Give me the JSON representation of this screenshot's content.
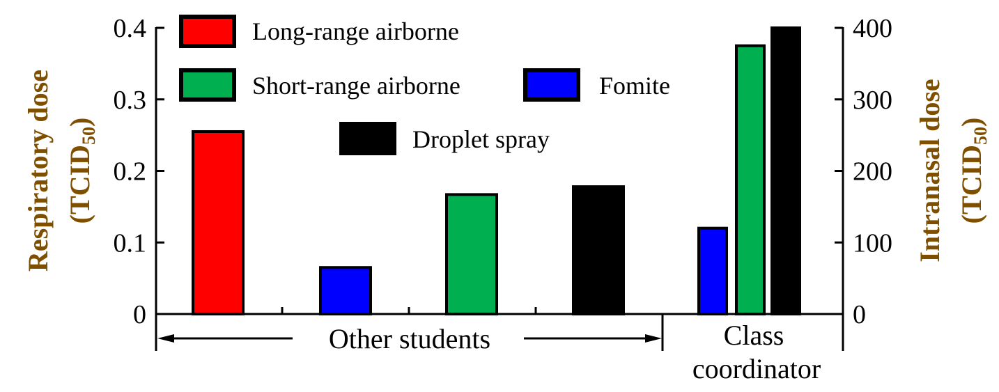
{
  "chart_data": {
    "type": "bar",
    "y_left": {
      "label": "Respiratory dose",
      "unit_main": "(TCID",
      "unit_sub": "50",
      "unit_close": ")",
      "range": [
        0,
        0.4
      ],
      "ticks": [
        0,
        0.1,
        0.2,
        0.3,
        0.4
      ],
      "tick_labels": [
        "0",
        "0.1",
        "0.2",
        "0.3",
        "0.4"
      ]
    },
    "y_right": {
      "label": "Intranasal dose",
      "unit_main": "(TCID",
      "unit_sub": "50",
      "unit_close": ")",
      "range": [
        0,
        400
      ],
      "ticks": [
        0,
        100,
        200,
        300,
        400
      ],
      "tick_labels": [
        "0",
        "100",
        "200",
        "300",
        "400"
      ]
    },
    "groups": [
      {
        "label": "Other students",
        "axis": "left",
        "bars": [
          {
            "series": "Long-range airborne",
            "value": 0.255
          },
          {
            "series": "Fomite",
            "value": 0.065
          },
          {
            "series": "Short-range airborne",
            "value": 0.167
          },
          {
            "series": "Droplet spray",
            "value": 0.178
          }
        ]
      },
      {
        "label_lines": [
          "Class",
          "coordinator"
        ],
        "axis": "right",
        "bars": [
          {
            "series": "Fomite",
            "value": 120
          },
          {
            "series": "Short-range airborne",
            "value": 375
          },
          {
            "series": "Droplet spray",
            "value": 400
          }
        ]
      }
    ],
    "legend": [
      {
        "name": "Long-range airborne",
        "color": "#ff0000"
      },
      {
        "name": "Short-range airborne",
        "color": "#00b050"
      },
      {
        "name": "Fomite",
        "color": "#0000ff"
      },
      {
        "name": "Droplet spray",
        "color": "#000000"
      }
    ],
    "axis_label_color": "#7f4f00",
    "grid": false,
    "legend_position": "top-left, inside plot"
  }
}
